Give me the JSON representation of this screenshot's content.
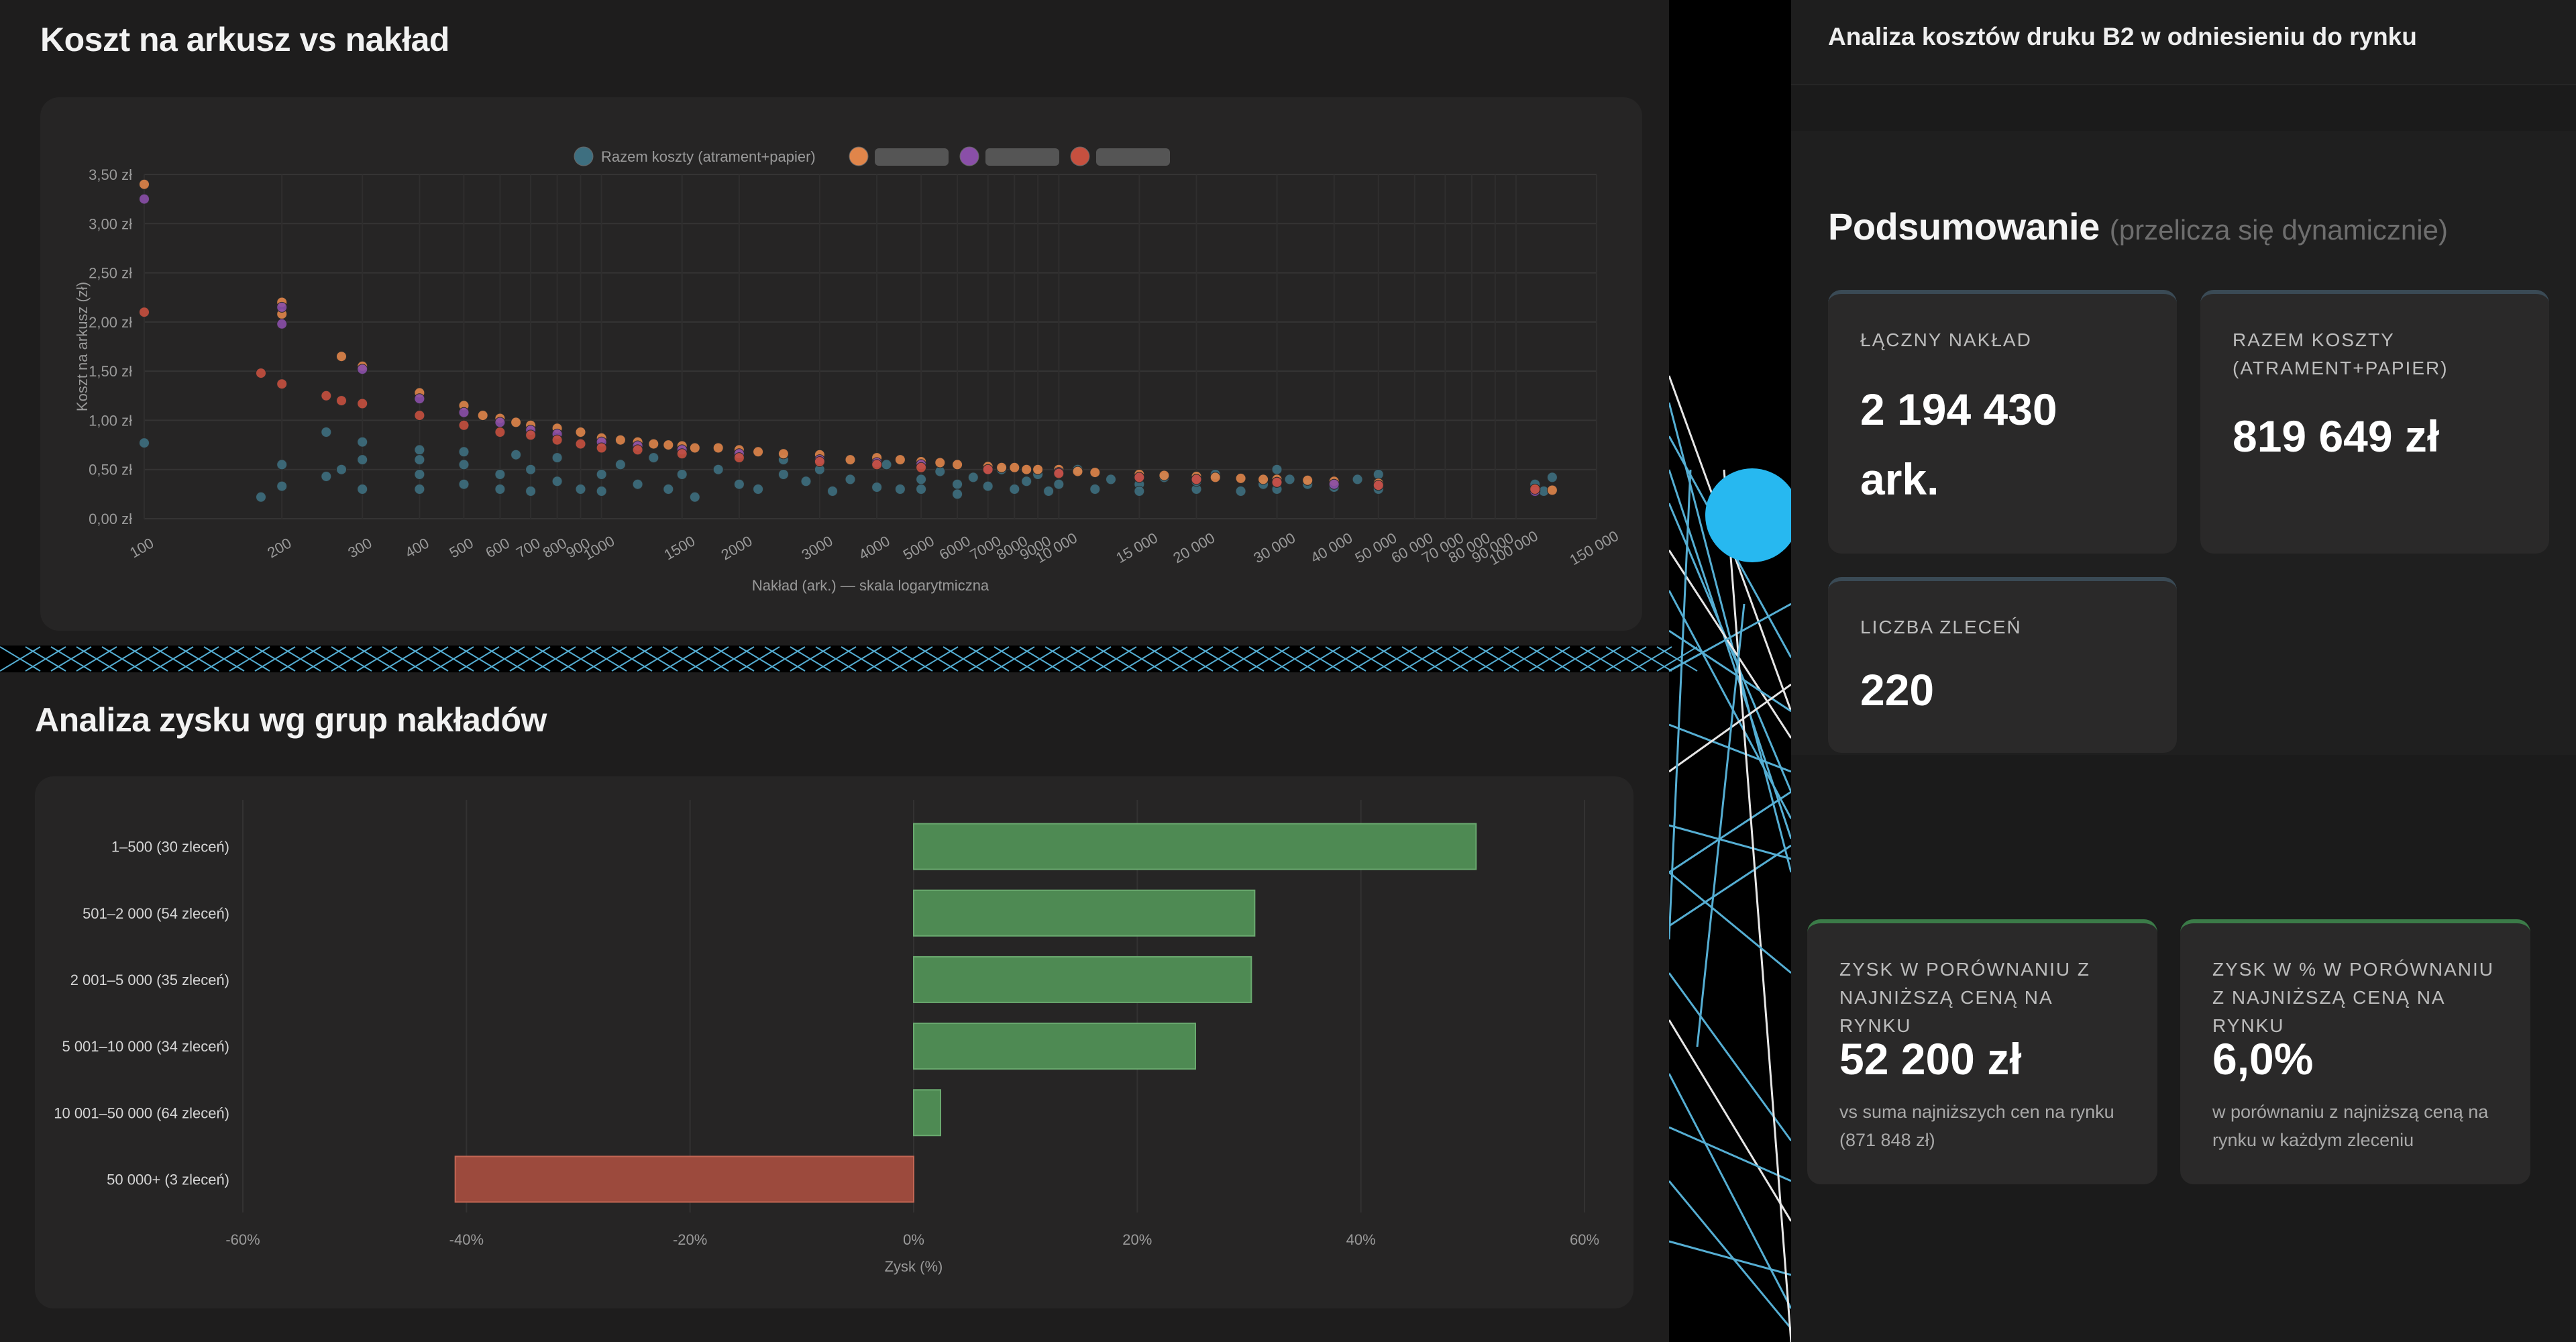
{
  "scatter_panel": {
    "title": "Koszt na arkusz vs nakład"
  },
  "bars_panel": {
    "title": "Analiza zysku wg grup nakładów"
  },
  "right_panel": {
    "header_title": "Analiza kosztów druku B2 w odniesieniu do rynku",
    "summary_title": "Podsumowanie",
    "summary_subtitle": "(przelicza się dynamicznie)",
    "cards": {
      "total_run_label": "ŁĄCZNY NAKŁAD",
      "total_run_value": "2 194 430",
      "total_run_unit": "ark.",
      "total_cost_label": "RAZEM KOSZTY (ATRAMENT+PAPIER)",
      "total_cost_value": "819 649 zł",
      "orders_label": "LICZBA ZLECEŃ",
      "orders_value": "220",
      "profit_label": "ZYSK W PORÓWNANIU Z NAJNIŻSZĄ CENĄ NA RYNKU",
      "profit_value": "52 200 zł",
      "profit_note": "vs suma najniższych cen na rynku (871 848 zł)",
      "profit_pct_label": "ZYSK W % W PORÓWNANIU Z NAJNIŻSZĄ CENĄ NA RYNKU",
      "profit_pct_value": "6,0%",
      "profit_pct_note": "w porównaniu z najniższą ceną na rynku w każdym zleceniu"
    }
  },
  "chart_data": [
    {
      "type": "scatter",
      "xlabel": "Nakład (ark.) — skala logarytmiczna",
      "ylabel": "Koszt na arkusz (zł)",
      "x_scale": "log",
      "xlim": [
        100,
        150000
      ],
      "ylim": [
        0,
        3.5
      ],
      "grid": true,
      "legend_position": "top",
      "x_ticks": [
        100,
        200,
        300,
        400,
        500,
        600,
        700,
        800,
        900,
        1000,
        1500,
        2000,
        3000,
        4000,
        5000,
        6000,
        7000,
        8000,
        9000,
        10000,
        15000,
        20000,
        30000,
        40000,
        50000,
        60000,
        70000,
        80000,
        90000,
        100000,
        150000
      ],
      "x_tick_labels": [
        "100",
        "200",
        "300",
        "400",
        "500",
        "600",
        "700",
        "800",
        "900",
        "1000",
        "1500",
        "2000",
        "3000",
        "4000",
        "5000",
        "6000",
        "7000",
        "8000",
        "9000",
        "10 000",
        "15 000",
        "20 000",
        "30 000",
        "40 000",
        "50 000",
        "60 000",
        "70 000",
        "80 000",
        "90 000",
        "100 000",
        "150 000"
      ],
      "y_ticks": [
        0,
        0.5,
        1,
        1.5,
        2,
        2.5,
        3,
        3.5
      ],
      "y_tick_labels": [
        "0,00 zł",
        "0,50 zł",
        "1,00 zł",
        "1,50 zł",
        "2,00 zł",
        "2,50 zł",
        "3,00 zł",
        "3,50 zł"
      ],
      "series": [
        {
          "name": "Razem koszty (atrament+papier)",
          "color": "#3e6f80",
          "points": [
            [
              100,
              0.77
            ],
            [
              180,
              0.22
            ],
            [
              200,
              0.33
            ],
            [
              200,
              0.55
            ],
            [
              250,
              0.88
            ],
            [
              250,
              0.43
            ],
            [
              270,
              0.5
            ],
            [
              300,
              0.6
            ],
            [
              300,
              0.3
            ],
            [
              300,
              0.78
            ],
            [
              400,
              0.45
            ],
            [
              400,
              0.7
            ],
            [
              400,
              0.3
            ],
            [
              400,
              0.6
            ],
            [
              500,
              0.35
            ],
            [
              500,
              0.55
            ],
            [
              500,
              0.68
            ],
            [
              600,
              0.45
            ],
            [
              600,
              0.3
            ],
            [
              650,
              0.65
            ],
            [
              700,
              0.28
            ],
            [
              700,
              0.5
            ],
            [
              800,
              0.38
            ],
            [
              800,
              0.62
            ],
            [
              900,
              0.3
            ],
            [
              1000,
              0.45
            ],
            [
              1000,
              0.28
            ],
            [
              1100,
              0.55
            ],
            [
              1200,
              0.35
            ],
            [
              1300,
              0.62
            ],
            [
              1400,
              0.3
            ],
            [
              1500,
              0.45
            ],
            [
              1600,
              0.22
            ],
            [
              1800,
              0.5
            ],
            [
              2000,
              0.35
            ],
            [
              2000,
              0.65
            ],
            [
              2200,
              0.3
            ],
            [
              2500,
              0.45
            ],
            [
              2500,
              0.6
            ],
            [
              2800,
              0.38
            ],
            [
              3000,
              0.5
            ],
            [
              3200,
              0.28
            ],
            [
              3500,
              0.4
            ],
            [
              4000,
              0.32
            ],
            [
              4200,
              0.55
            ],
            [
              4500,
              0.3
            ],
            [
              5000,
              0.4
            ],
            [
              5000,
              0.3
            ],
            [
              5500,
              0.48
            ],
            [
              6000,
              0.35
            ],
            [
              6000,
              0.25
            ],
            [
              6500,
              0.42
            ],
            [
              7000,
              0.33
            ],
            [
              7500,
              0.5
            ],
            [
              8000,
              0.3
            ],
            [
              8500,
              0.38
            ],
            [
              9000,
              0.45
            ],
            [
              9500,
              0.28
            ],
            [
              10000,
              0.35
            ],
            [
              11000,
              0.5
            ],
            [
              12000,
              0.3
            ],
            [
              13000,
              0.4
            ],
            [
              15000,
              0.35
            ],
            [
              15000,
              0.28
            ],
            [
              17000,
              0.42
            ],
            [
              20000,
              0.3
            ],
            [
              20000,
              0.38
            ],
            [
              22000,
              0.45
            ],
            [
              25000,
              0.28
            ],
            [
              28000,
              0.35
            ],
            [
              30000,
              0.5
            ],
            [
              30000,
              0.3
            ],
            [
              32000,
              0.4
            ],
            [
              35000,
              0.35
            ],
            [
              40000,
              0.32
            ],
            [
              45000,
              0.4
            ],
            [
              50000,
              0.3
            ],
            [
              50000,
              0.45
            ],
            [
              110000,
              0.35
            ],
            [
              115000,
              0.28
            ],
            [
              120000,
              0.42
            ]
          ]
        },
        {
          "name": "",
          "color": "#e0854a",
          "points": [
            [
              100,
              3.4
            ],
            [
              200,
              2.2
            ],
            [
              200,
              2.08
            ],
            [
              300,
              1.55
            ],
            [
              270,
              1.65
            ],
            [
              400,
              1.28
            ],
            [
              500,
              1.15
            ],
            [
              550,
              1.05
            ],
            [
              600,
              1.02
            ],
            [
              650,
              0.98
            ],
            [
              700,
              0.95
            ],
            [
              800,
              0.92
            ],
            [
              900,
              0.88
            ],
            [
              1000,
              0.82
            ],
            [
              1100,
              0.8
            ],
            [
              1200,
              0.78
            ],
            [
              1300,
              0.76
            ],
            [
              1400,
              0.75
            ],
            [
              1500,
              0.74
            ],
            [
              1600,
              0.72
            ],
            [
              1800,
              0.72
            ],
            [
              2000,
              0.7
            ],
            [
              2200,
              0.68
            ],
            [
              2500,
              0.66
            ],
            [
              3000,
              0.65
            ],
            [
              3500,
              0.6
            ],
            [
              4000,
              0.62
            ],
            [
              4500,
              0.6
            ],
            [
              5000,
              0.58
            ],
            [
              5500,
              0.57
            ],
            [
              6000,
              0.55
            ],
            [
              7000,
              0.53
            ],
            [
              7500,
              0.52
            ],
            [
              8000,
              0.52
            ],
            [
              8500,
              0.5
            ],
            [
              9000,
              0.5
            ],
            [
              10000,
              0.5
            ],
            [
              11000,
              0.48
            ],
            [
              12000,
              0.47
            ],
            [
              15000,
              0.45
            ],
            [
              17000,
              0.44
            ],
            [
              20000,
              0.43
            ],
            [
              22000,
              0.42
            ],
            [
              25000,
              0.41
            ],
            [
              28000,
              0.4
            ],
            [
              30000,
              0.4
            ],
            [
              35000,
              0.39
            ],
            [
              40000,
              0.38
            ],
            [
              50000,
              0.36
            ],
            [
              110000,
              0.3
            ],
            [
              120000,
              0.29
            ]
          ]
        },
        {
          "name": "",
          "color": "#8a4fa8",
          "points": [
            [
              100,
              3.25
            ],
            [
              200,
              2.15
            ],
            [
              200,
              1.98
            ],
            [
              300,
              1.52
            ],
            [
              400,
              1.22
            ],
            [
              500,
              1.08
            ],
            [
              600,
              0.98
            ],
            [
              700,
              0.9
            ],
            [
              800,
              0.86
            ],
            [
              1000,
              0.78
            ],
            [
              1200,
              0.74
            ],
            [
              1500,
              0.7
            ],
            [
              2000,
              0.66
            ],
            [
              3000,
              0.6
            ],
            [
              4000,
              0.57
            ],
            [
              5000,
              0.55
            ],
            [
              7000,
              0.5
            ],
            [
              10000,
              0.47
            ],
            [
              15000,
              0.42
            ],
            [
              20000,
              0.4
            ],
            [
              30000,
              0.37
            ],
            [
              40000,
              0.35
            ],
            [
              50000,
              0.34
            ],
            [
              110000,
              0.28
            ]
          ]
        },
        {
          "name": "",
          "color": "#c6503f",
          "points": [
            [
              100,
              2.1
            ],
            [
              180,
              1.48
            ],
            [
              200,
              1.37
            ],
            [
              250,
              1.25
            ],
            [
              270,
              1.2
            ],
            [
              300,
              1.17
            ],
            [
              400,
              1.05
            ],
            [
              500,
              0.95
            ],
            [
              600,
              0.88
            ],
            [
              700,
              0.85
            ],
            [
              800,
              0.8
            ],
            [
              900,
              0.76
            ],
            [
              1000,
              0.72
            ],
            [
              1200,
              0.7
            ],
            [
              1500,
              0.66
            ],
            [
              2000,
              0.62
            ],
            [
              3000,
              0.58
            ],
            [
              4000,
              0.55
            ],
            [
              5000,
              0.52
            ],
            [
              7000,
              0.5
            ],
            [
              10000,
              0.46
            ],
            [
              15000,
              0.42
            ],
            [
              20000,
              0.4
            ],
            [
              30000,
              0.37
            ],
            [
              50000,
              0.34
            ],
            [
              110000,
              0.3
            ]
          ]
        }
      ]
    },
    {
      "type": "bar",
      "orientation": "horizontal",
      "xlabel": "Zysk (%)",
      "xlim": [
        -60,
        60
      ],
      "x_ticks": [
        -60,
        -40,
        -20,
        0,
        20,
        40,
        60
      ],
      "x_tick_labels": [
        "-60%",
        "-40%",
        "-20%",
        "0%",
        "20%",
        "40%",
        "60%"
      ],
      "grid": true,
      "categories": [
        "1–500 (30 zleceń)",
        "501–2 000 (54 zleceń)",
        "2 001–5 000 (35 zleceń)",
        "5 001–10 000 (34 zleceń)",
        "10 001–50 000 (64 zleceń)",
        "50 000+ (3 zleceń)"
      ],
      "values": [
        50.3,
        30.5,
        30.2,
        25.2,
        2.4,
        -41.0
      ],
      "colors": {
        "positive": "#4e8a53",
        "negative": "#9c4a3d"
      }
    }
  ]
}
